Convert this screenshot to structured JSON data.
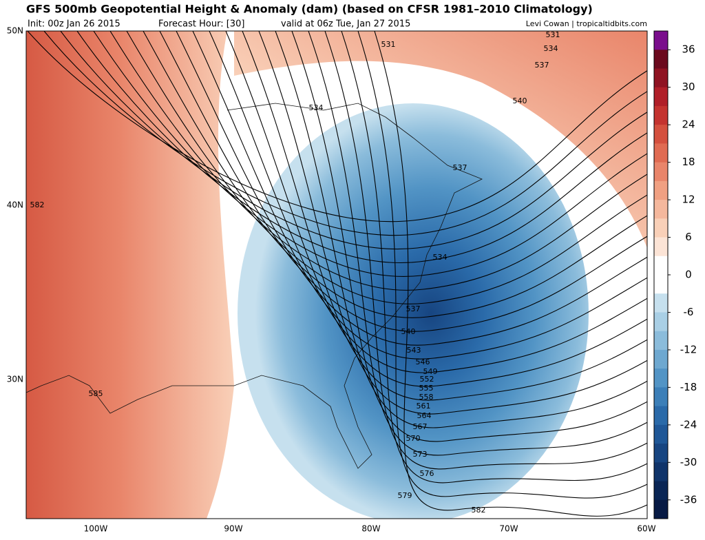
{
  "header": {
    "title": "GFS 500mb Geopotential Height & Anomaly (dam) (based on CFSR 1981–2010 Climatology)",
    "init": "Init: 00z Jan 26 2015",
    "forecast_hour": "Forecast Hour: [30]",
    "valid": "valid at 06z Tue, Jan 27 2015",
    "credit": "Levi Cowan | tropicaltidbits.com"
  },
  "map": {
    "lat_labels": [
      "50N",
      "40N",
      "30N"
    ],
    "lon_labels": [
      "100W",
      "90W",
      "80W",
      "70W",
      "60W"
    ],
    "contour_labels": [
      "531",
      "531",
      "534",
      "537",
      "540",
      "534",
      "537",
      "534",
      "537",
      "540",
      "543",
      "546",
      "549",
      "552",
      "555",
      "558",
      "561",
      "564",
      "567",
      "570",
      "573",
      "576",
      "579",
      "582",
      "582",
      "585"
    ]
  },
  "colorbar": {
    "ticks": [
      36,
      30,
      24,
      18,
      12,
      6,
      0,
      -6,
      -12,
      -18,
      -24,
      -30,
      -36
    ],
    "colors": [
      "#7a0e8c",
      "#6b0a1e",
      "#8f1322",
      "#b01f28",
      "#c4332f",
      "#d4503e",
      "#e06b52",
      "#e9856a",
      "#f0a082",
      "#f5b89d",
      "#f9d0b8",
      "#fce4d6",
      "#ffffff",
      "#ffffff",
      "#c6e0ee",
      "#a9cfe5",
      "#8bbcdb",
      "#6ea8d0",
      "#5294c5",
      "#3c7fb8",
      "#2a6aa9",
      "#1f5797",
      "#174581",
      "#10346a",
      "#0a2655",
      "#071a44"
    ]
  }
}
